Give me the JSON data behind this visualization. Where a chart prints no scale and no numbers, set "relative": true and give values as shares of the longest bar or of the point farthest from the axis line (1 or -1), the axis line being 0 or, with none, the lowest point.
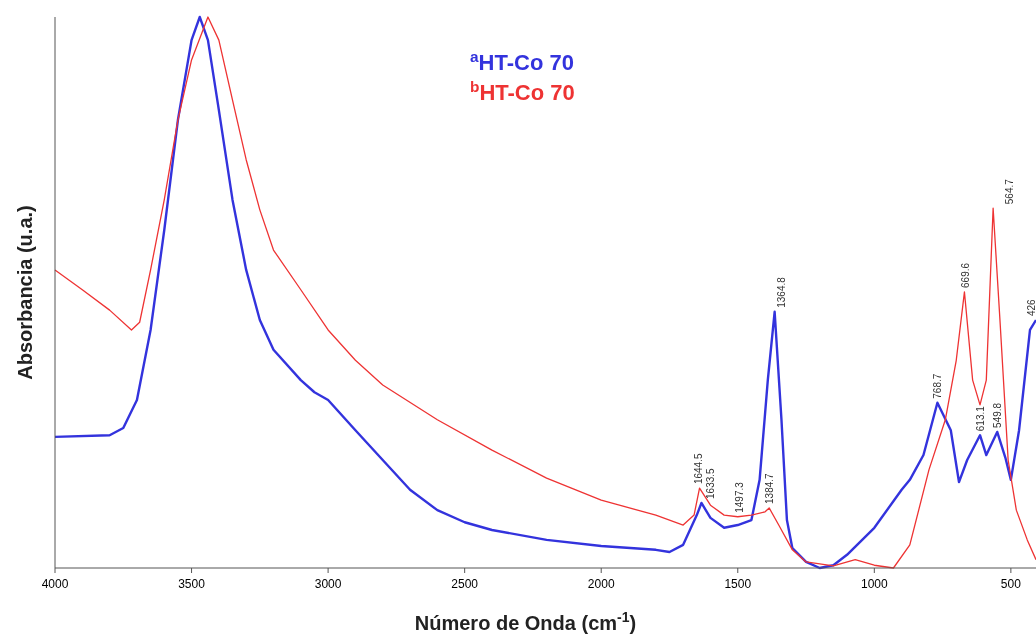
{
  "chart_data": {
    "type": "line",
    "relative": true,
    "xlabel": "Número de Onda (cm$^{-1}$)",
    "ylabel": "Absorbancia (u.a.)",
    "xlim": [
      4000,
      408
    ],
    "xticks": [
      4000,
      3500,
      3000,
      2500,
      2000,
      1500,
      1000,
      500
    ],
    "legend": "top",
    "grid": false,
    "series": [
      {
        "name": "$^{a}$HT-Co 70",
        "color": "#3333dd",
        "x": [
          4000,
          3800,
          3750,
          3700,
          3650,
          3600,
          3550,
          3500,
          3470,
          3440,
          3400,
          3350,
          3300,
          3250,
          3200,
          3100,
          3050,
          3000,
          2900,
          2800,
          2700,
          2600,
          2500,
          2400,
          2200,
          2000,
          1800,
          1750,
          1700,
          1650,
          1633,
          1600,
          1550,
          1500,
          1450,
          1420,
          1390,
          1365,
          1340,
          1320,
          1300,
          1250,
          1200,
          1150,
          1100,
          1000,
          900,
          870,
          820,
          769,
          720,
          690,
          660,
          613,
          590,
          550,
          520,
          500,
          470,
          430,
          408
        ],
        "values": [
          0.238,
          0.241,
          0.254,
          0.305,
          0.432,
          0.613,
          0.813,
          0.958,
          1.0,
          0.958,
          0.831,
          0.668,
          0.541,
          0.45,
          0.396,
          0.341,
          0.319,
          0.305,
          0.25,
          0.196,
          0.142,
          0.105,
          0.083,
          0.069,
          0.051,
          0.04,
          0.033,
          0.029,
          0.042,
          0.096,
          0.118,
          0.091,
          0.073,
          0.078,
          0.087,
          0.16,
          0.341,
          0.465,
          0.269,
          0.087,
          0.036,
          0.011,
          0,
          0.005,
          0.024,
          0.073,
          0.142,
          0.16,
          0.205,
          0.3,
          0.25,
          0.156,
          0.196,
          0.241,
          0.205,
          0.247,
          0.2,
          0.16,
          0.25,
          0.432,
          0.45
        ]
      },
      {
        "name": "$^{b}$HT-Co 70",
        "color": "#ee3333",
        "x": [
          4000,
          3900,
          3800,
          3720,
          3690,
          3650,
          3600,
          3550,
          3500,
          3440,
          3400,
          3350,
          3300,
          3250,
          3200,
          3100,
          3000,
          2900,
          2800,
          2600,
          2400,
          2200,
          2000,
          1800,
          1700,
          1660,
          1640,
          1600,
          1550,
          1500,
          1450,
          1400,
          1385,
          1350,
          1300,
          1250,
          1150,
          1070,
          1000,
          930,
          870,
          800,
          740,
          700,
          670,
          640,
          613,
          590,
          565,
          540,
          510,
          480,
          440,
          408
        ],
        "values": [
          0.541,
          0.505,
          0.468,
          0.432,
          0.446,
          0.541,
          0.668,
          0.813,
          0.922,
          1.0,
          0.958,
          0.849,
          0.741,
          0.65,
          0.577,
          0.505,
          0.432,
          0.377,
          0.332,
          0.269,
          0.214,
          0.163,
          0.123,
          0.096,
          0.078,
          0.096,
          0.145,
          0.114,
          0.096,
          0.093,
          0.096,
          0.102,
          0.109,
          0.078,
          0.033,
          0.011,
          0.004,
          0.015,
          0.005,
          0,
          0.042,
          0.178,
          0.269,
          0.377,
          0.501,
          0.341,
          0.296,
          0.341,
          0.653,
          0.45,
          0.196,
          0.105,
          0.051,
          0.015
        ]
      }
    ],
    "annotations": [
      {
        "text": "1644.5",
        "x": 1644.5,
        "y": 0.145
      },
      {
        "text": "1633.5",
        "x": 1633.5,
        "y": 0.118
      },
      {
        "text": "1497.3",
        "x": 1497.3,
        "y": 0.093
      },
      {
        "text": "1384.7",
        "x": 1384.7,
        "y": 0.109
      },
      {
        "text": "1364.8",
        "x": 1364.8,
        "y": 0.465
      },
      {
        "text": "768.7",
        "x": 768.7,
        "y": 0.3
      },
      {
        "text": "669.6",
        "x": 669.6,
        "y": 0.501
      },
      {
        "text": "613.1",
        "x": 613.1,
        "y": 0.241
      },
      {
        "text": "549.8",
        "x": 549.8,
        "y": 0.247
      },
      {
        "text": "564.7",
        "x": 564.7,
        "y": 0.653
      },
      {
        "text": "426",
        "x": 426,
        "y": 0.45
      }
    ]
  }
}
